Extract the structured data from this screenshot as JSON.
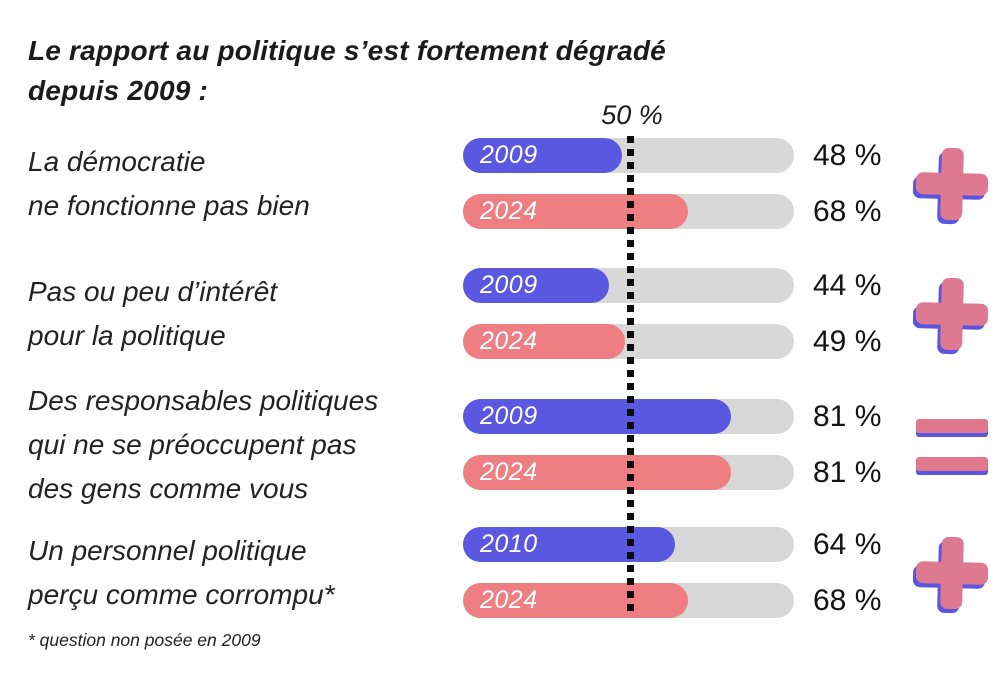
{
  "title": {
    "line1": "Le rapport au politique s’est fortement dégradé",
    "line2": "depuis 2009 :"
  },
  "footnote": "* question non posée en 2009",
  "colors": {
    "bar_old": "#5a57e0",
    "bar_2024": "#ee7e82",
    "track": "#d8d8d8",
    "icon_pink": "#dd7a92",
    "icon_blue_shadow": "#5b55e0",
    "text": "#1b1b1b"
  },
  "chart_data": {
    "type": "bar",
    "title": "Le rapport au politique s’est fortement dégradé depuis 2009 :",
    "unit": "%",
    "xlim": [
      0,
      100
    ],
    "axis_marker": {
      "label": "50 %",
      "value": 50,
      "style": "dotted-vertical-line"
    },
    "legend_position": "inside-bars",
    "grid": false,
    "groups": [
      {
        "label_lines": [
          "La démocratie",
          "ne fonctionne pas bien"
        ],
        "trend_icon": "plus-icon",
        "bars": [
          {
            "year": "2009",
            "value": 48,
            "display": "48 %",
            "color": "#5a57e0"
          },
          {
            "year": "2024",
            "value": 68,
            "display": "68 %",
            "color": "#ee7e82"
          }
        ]
      },
      {
        "label_lines": [
          "Pas ou peu d’intérêt",
          "pour la politique"
        ],
        "trend_icon": "plus-icon",
        "bars": [
          {
            "year": "2009",
            "value": 44,
            "display": "44 %",
            "color": "#5a57e0"
          },
          {
            "year": "2024",
            "value": 49,
            "display": "49 %",
            "color": "#ee7e82"
          }
        ]
      },
      {
        "label_lines": [
          "Des responsables politiques",
          "qui ne se préoccupent pas",
          "des gens comme vous"
        ],
        "trend_icon": "equals-icon",
        "bars": [
          {
            "year": "2009",
            "value": 81,
            "display": "81 %",
            "color": "#5a57e0"
          },
          {
            "year": "2024",
            "value": 81,
            "display": "81 %",
            "color": "#ee7e82"
          }
        ]
      },
      {
        "label_lines": [
          "Un personnel politique",
          "perçu comme corrompu*"
        ],
        "trend_icon": "plus-icon",
        "bars": [
          {
            "year": "2010",
            "value": 64,
            "display": "64 %",
            "color": "#5a57e0"
          },
          {
            "year": "2024",
            "value": 68,
            "display": "68 %",
            "color": "#ee7e82"
          }
        ]
      }
    ]
  }
}
